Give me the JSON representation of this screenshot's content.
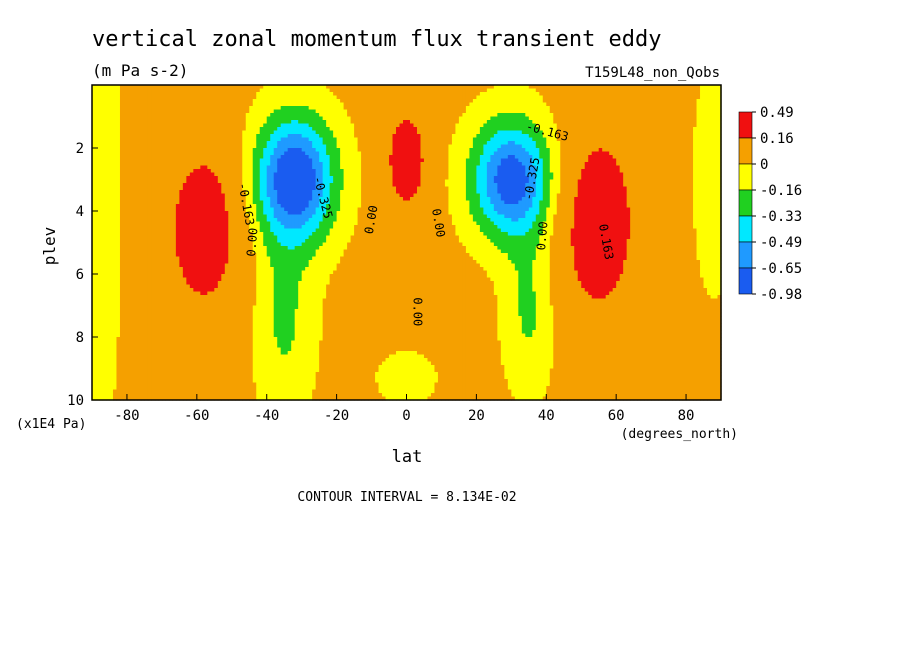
{
  "chart_data": {
    "type": "heatmap",
    "title": "vertical zonal momentum flux transient eddy",
    "units": "(m Pa s-2)",
    "run_label": "T159L48_non_Qobs",
    "xlabel": "lat",
    "x_units": "(degrees_north)",
    "ylabel": "plev",
    "y_units": "(x1E4 Pa)",
    "xlim": [
      -90,
      90
    ],
    "ylim": [
      10,
      0
    ],
    "x_ticks": [
      "-80",
      "-60",
      "-40",
      "-20",
      "0",
      "20",
      "40",
      "60",
      "80"
    ],
    "y_ticks": [
      "2",
      "4",
      "6",
      "8",
      "10"
    ],
    "contour_interval_text": "CONTOUR INTERVAL = 8.134E-02",
    "contour_labels": [
      "-0.163",
      "-0.325",
      "0.00",
      "0.00",
      "0.00",
      "0.00",
      "0.00",
      "-0.325",
      "-0.163",
      "0.163"
    ],
    "legend": {
      "labels": [
        "0.49",
        "0.16",
        "0",
        "-0.16",
        "-0.33",
        "-0.49",
        "-0.65",
        "-0.98"
      ],
      "colors": [
        "#f01010",
        "#f5a000",
        "#ffff00",
        "#20d020",
        "#00e8ff",
        "#1f9aff",
        "#1a5cf0"
      ]
    },
    "field": {
      "background": 0.05,
      "features": [
        {
          "lat": -32,
          "plev": 3.0,
          "amp": -0.9,
          "sx": 8,
          "sy": 1.4
        },
        {
          "lat": -35,
          "plev": 7.5,
          "amp": -0.24,
          "sx": 6,
          "sy": 2.0
        },
        {
          "lat": 30,
          "plev": 3.0,
          "amp": -0.82,
          "sx": 8,
          "sy": 1.3
        },
        {
          "lat": 35,
          "plev": 7.2,
          "amp": -0.24,
          "sx": 5,
          "sy": 1.8
        },
        {
          "lat": -58,
          "plev": 4.6,
          "amp": 0.42,
          "sx": 8,
          "sy": 2.0
        },
        {
          "lat": 55,
          "plev": 4.4,
          "amp": 0.45,
          "sx": 8,
          "sy": 2.2
        },
        {
          "lat": 0,
          "plev": 2.4,
          "amp": 0.48,
          "sx": 4,
          "sy": 1.1
        },
        {
          "lat": 0,
          "plev": 9.3,
          "amp": -0.14,
          "sx": 6,
          "sy": 0.6
        },
        {
          "lat": -88,
          "plev": 4.0,
          "amp": -0.18,
          "sx": 4,
          "sy": 5.0
        },
        {
          "lat": 88,
          "plev": 3.0,
          "amp": -0.16,
          "sx": 4,
          "sy": 2.5
        }
      ]
    }
  }
}
